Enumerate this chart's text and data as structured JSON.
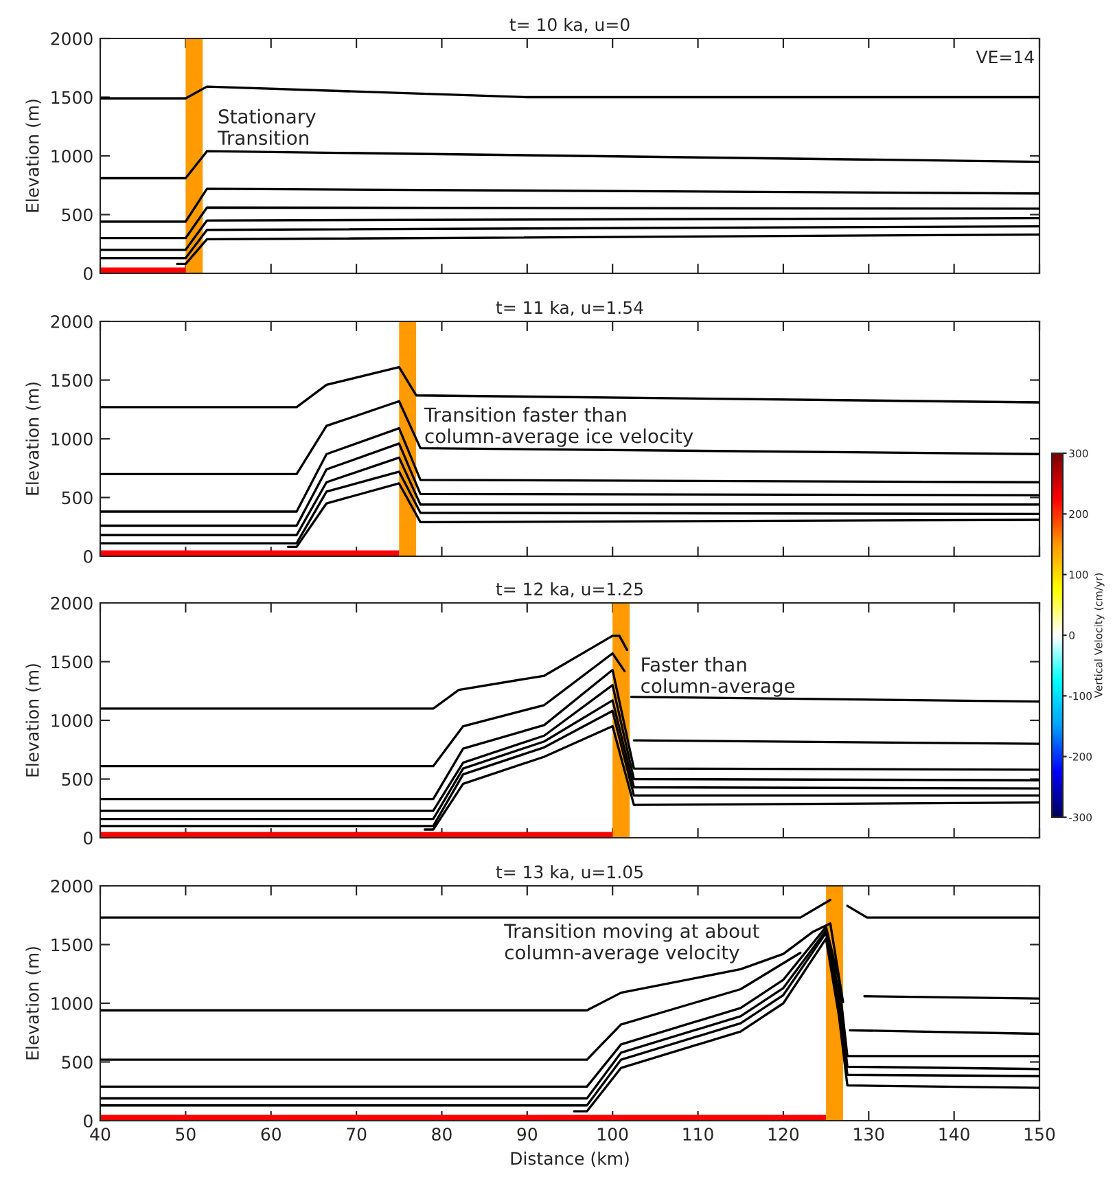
{
  "chart_data": [
    {
      "type": "line",
      "title": "t= 10 ka, u=0",
      "ylabel": "Elevation (m)",
      "xlim": [
        40,
        150
      ],
      "ylim": [
        0,
        2000
      ],
      "xticks": [
        40,
        50,
        60,
        70,
        80,
        90,
        100,
        110,
        120,
        130,
        140,
        150
      ],
      "yticks": [
        0,
        500,
        1000,
        1500,
        2000
      ],
      "tick_labels": "y",
      "grid": false,
      "annotations": [
        "VE=14",
        "Stationary\nTransition"
      ],
      "bands": [
        {
          "axis": "x",
          "from": 50,
          "to": 52,
          "color": "#ff9a00"
        }
      ],
      "series": [
        {
          "type": "area",
          "color": "#ff0000",
          "x": [
            40,
            50
          ],
          "values": [
            50,
            50
          ]
        },
        {
          "color": "#000000",
          "x": [
            40,
            50,
            52.5,
            90,
            150
          ],
          "values": [
            1490,
            1490,
            1590,
            1500,
            1500
          ]
        },
        {
          "color": "#000000",
          "x": [
            40,
            50,
            52.5,
            150
          ],
          "values": [
            810,
            810,
            1040,
            950
          ]
        },
        {
          "color": "#000000",
          "x": [
            40,
            50,
            52.5,
            150
          ],
          "values": [
            440,
            440,
            720,
            680
          ]
        },
        {
          "color": "#000000",
          "x": [
            40,
            50,
            52.5,
            150
          ],
          "values": [
            300,
            300,
            560,
            550
          ]
        },
        {
          "color": "#000000",
          "x": [
            40,
            50,
            52.5,
            150
          ],
          "values": [
            200,
            200,
            450,
            470
          ]
        },
        {
          "color": "#000000",
          "x": [
            40,
            50,
            52.5,
            150
          ],
          "values": [
            130,
            130,
            370,
            400
          ]
        },
        {
          "color": "#000000",
          "x": [
            49,
            50,
            52.5,
            150
          ],
          "values": [
            80,
            80,
            290,
            330
          ]
        }
      ]
    },
    {
      "type": "line",
      "title": "t= 11 ka, u=1.54",
      "ylabel": "Elevation (m)",
      "xlim": [
        40,
        150
      ],
      "ylim": [
        0,
        2000
      ],
      "xticks": [
        40,
        50,
        60,
        70,
        80,
        90,
        100,
        110,
        120,
        130,
        140,
        150
      ],
      "yticks": [
        0,
        500,
        1000,
        1500,
        2000
      ],
      "tick_labels": "y",
      "grid": false,
      "clim": [
        -300,
        300
      ],
      "cticks": [
        -300,
        -200,
        -100,
        0,
        100,
        200,
        300
      ],
      "clabel": "Vertical Velocity (cm/yr)",
      "annotations": [
        "Transition faster than\ncolumn-average ice velocity"
      ],
      "bands": [
        {
          "axis": "x",
          "from": 75,
          "to": 77,
          "color": "#ff9a00"
        }
      ],
      "series": [
        {
          "type": "area",
          "color": "#ff0000",
          "x": [
            40,
            75
          ],
          "values": [
            50,
            50
          ]
        },
        {
          "color": "#000000",
          "x": [
            40,
            63,
            66.5,
            75,
            77,
            150
          ],
          "values": [
            1270,
            1270,
            1460,
            1610,
            1370,
            1310
          ]
        },
        {
          "color": "#000000",
          "x": [
            40,
            63,
            66.5,
            75,
            77.5,
            150
          ],
          "values": [
            700,
            700,
            1110,
            1320,
            920,
            870
          ]
        },
        {
          "color": "#000000",
          "x": [
            40,
            63,
            66.5,
            75,
            77.5,
            150
          ],
          "values": [
            380,
            380,
            870,
            1090,
            650,
            630
          ]
        },
        {
          "color": "#000000",
          "x": [
            40,
            63,
            66.5,
            75,
            77.5,
            150
          ],
          "values": [
            260,
            260,
            740,
            960,
            530,
            520
          ]
        },
        {
          "color": "#000000",
          "x": [
            40,
            63,
            66.5,
            75,
            77.5,
            150
          ],
          "values": [
            180,
            180,
            630,
            840,
            440,
            440
          ]
        },
        {
          "color": "#000000",
          "x": [
            40,
            63,
            66.5,
            75,
            77.5,
            150
          ],
          "values": [
            110,
            110,
            550,
            720,
            370,
            360
          ]
        },
        {
          "color": "#000000",
          "x": [
            62,
            63,
            66.5,
            75,
            77.5,
            150
          ],
          "values": [
            80,
            80,
            450,
            620,
            290,
            310
          ]
        }
      ]
    },
    {
      "type": "line",
      "title": "t= 12 ka, u=1.25",
      "ylabel": "Elevation (m)",
      "xlim": [
        40,
        150
      ],
      "ylim": [
        0,
        2000
      ],
      "xticks": [
        40,
        50,
        60,
        70,
        80,
        90,
        100,
        110,
        120,
        130,
        140,
        150
      ],
      "yticks": [
        0,
        500,
        1000,
        1500,
        2000
      ],
      "tick_labels": "y",
      "grid": false,
      "annotations": [
        "Faster than\ncolumn-average"
      ],
      "bands": [
        {
          "axis": "x",
          "from": 100,
          "to": 102,
          "color": "#ff9a00"
        }
      ],
      "series": [
        {
          "type": "area",
          "color": "#ff0000",
          "x": [
            40,
            100
          ],
          "values": [
            50,
            50
          ]
        },
        {
          "color": "#000000",
          "x": [
            40,
            79,
            82,
            92,
            100,
            100.8,
            101.7,
            102,
            102.2,
            150
          ],
          "values": [
            1100,
            1100,
            1260,
            1380,
            1720,
            1720,
            1600,
            null,
            1200,
            1160
          ]
        },
        {
          "color": "#000000",
          "x": [
            40,
            79,
            82.5,
            92,
            100,
            101.4,
            102,
            102.5,
            150
          ],
          "values": [
            610,
            610,
            950,
            1130,
            1570,
            1420,
            null,
            830,
            800
          ]
        },
        {
          "color": "#000000",
          "x": [
            40,
            79,
            82.5,
            92,
            100,
            102.5,
            150
          ],
          "values": [
            330,
            330,
            760,
            960,
            1430,
            590,
            580
          ]
        },
        {
          "color": "#000000",
          "x": [
            40,
            79,
            82.5,
            92,
            100,
            102.5,
            150
          ],
          "values": [
            230,
            230,
            640,
            870,
            1300,
            500,
            490
          ]
        },
        {
          "color": "#000000",
          "x": [
            40,
            79,
            82.5,
            92,
            100,
            102.5,
            150
          ],
          "values": [
            160,
            160,
            590,
            820,
            1170,
            430,
            420
          ]
        },
        {
          "color": "#000000",
          "x": [
            40,
            79,
            82.5,
            92,
            100,
            102.5,
            150
          ],
          "values": [
            100,
            100,
            540,
            770,
            1080,
            360,
            360
          ]
        },
        {
          "color": "#000000",
          "x": [
            78,
            79,
            82.5,
            92,
            100,
            102.5,
            150
          ],
          "values": [
            70,
            70,
            460,
            690,
            950,
            280,
            300
          ]
        }
      ]
    },
    {
      "type": "line",
      "title": "t= 13 ka, u=1.05",
      "ylabel": "Elevation (m)",
      "xlabel": "Distance (km)",
      "xlim": [
        40,
        150
      ],
      "ylim": [
        0,
        2000
      ],
      "xticks": [
        40,
        50,
        60,
        70,
        80,
        90,
        100,
        110,
        120,
        130,
        140,
        150
      ],
      "yticks": [
        0,
        500,
        1000,
        1500,
        2000
      ],
      "grid": false,
      "annotations": [
        "Transition moving at about\ncolumn-average velocity"
      ],
      "bands": [
        {
          "axis": "x",
          "from": 125,
          "to": 127,
          "color": "#ff9a00"
        }
      ],
      "series": [
        {
          "type": "area",
          "color": "#ff0000",
          "x": [
            40,
            125
          ],
          "values": [
            50,
            50
          ]
        },
        {
          "color": "#000000",
          "x": [
            40,
            122,
            125.5,
            126.5,
            127.5,
            129.8,
            150
          ],
          "values": [
            1730,
            1730,
            1880,
            null,
            1830,
            1730,
            1730
          ]
        },
        {
          "color": "#000000",
          "x": [
            40,
            97,
            101,
            115,
            120,
            123.5,
            125.5,
            127,
            127.8,
            129.5,
            150
          ],
          "values": [
            940,
            940,
            1090,
            1290,
            1420,
            1610,
            1680,
            1010,
            null,
            1060,
            1040
          ]
        },
        {
          "color": "#000000",
          "x": [
            40,
            97,
            101,
            115,
            122,
            124,
            127.8,
            150
          ],
          "values": [
            520,
            520,
            820,
            1120,
            1430,
            null,
            770,
            740
          ]
        },
        {
          "color": "#000000",
          "x": [
            40,
            97,
            101,
            115,
            120,
            125,
            126.5,
            127.5,
            150
          ],
          "values": [
            290,
            290,
            650,
            960,
            1200,
            1650,
            1200,
            550,
            550
          ]
        },
        {
          "color": "#000000",
          "x": [
            40,
            97,
            101,
            115,
            120,
            125,
            126.5,
            127.5,
            150
          ],
          "values": [
            190,
            190,
            580,
            890,
            1130,
            1620,
            1100,
            460,
            440
          ]
        },
        {
          "color": "#000000",
          "x": [
            40,
            97,
            101,
            115,
            120,
            125,
            126.5,
            127.5,
            150
          ],
          "values": [
            130,
            130,
            520,
            830,
            1070,
            1600,
            1000,
            390,
            380
          ]
        },
        {
          "color": "#000000",
          "x": [
            95.5,
            97,
            101,
            115,
            120,
            125,
            126.5,
            127.5,
            150
          ],
          "values": [
            80,
            80,
            450,
            760,
            1000,
            1550,
            900,
            300,
            280
          ]
        }
      ]
    }
  ]
}
